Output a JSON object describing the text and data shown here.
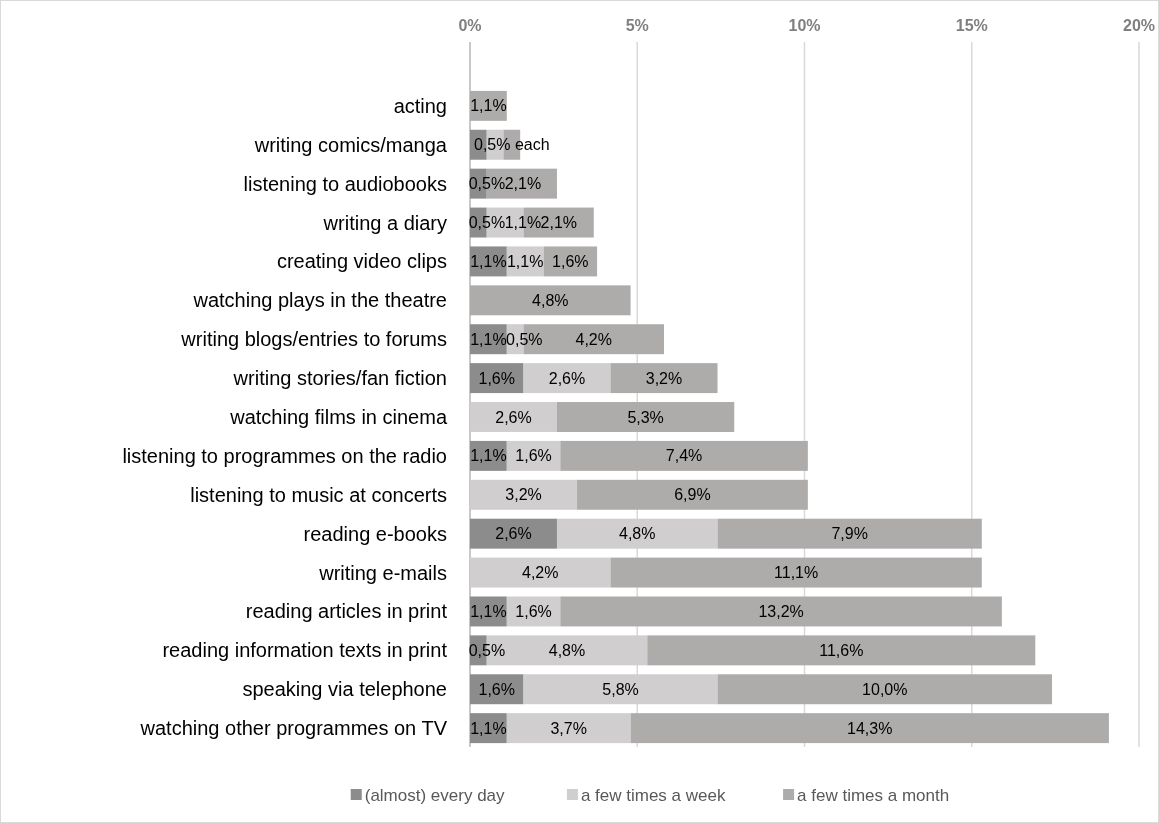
{
  "chart_data": {
    "type": "bar",
    "orientation": "horizontal",
    "stacked": true,
    "categories": [
      "acting",
      "writing comics/manga",
      "listening to audiobooks",
      "writing a diary",
      "creating video clips",
      "watching plays in the theatre",
      "writing blogs/entries to forums",
      "writing stories/fan fiction",
      "watching films in cinema",
      "listening to programmes on the radio",
      "listening to music at concerts",
      "reading e-books",
      "writing e-mails",
      "reading articles in print",
      "reading information texts in print",
      "speaking via telephone",
      "watching other programmes on TV"
    ],
    "series": [
      {
        "name": "(almost) every day",
        "color": "#8c8c8c",
        "values": [
          null,
          0.5,
          0.5,
          0.5,
          1.1,
          null,
          1.1,
          1.6,
          null,
          1.1,
          null,
          2.6,
          null,
          1.1,
          0.5,
          1.6,
          1.1
        ],
        "value_labels": [
          null,
          null,
          "0,5%",
          "0,5%",
          "1,1%",
          null,
          "1,1%",
          "1,6%",
          null,
          "1,1%",
          null,
          "2,6%",
          null,
          "1,1%",
          "0,5%",
          "1,6%",
          "1,1%"
        ]
      },
      {
        "name": "a few times a week",
        "color": "#d0cece",
        "values": [
          null,
          0.5,
          null,
          1.1,
          1.1,
          null,
          0.5,
          2.6,
          2.6,
          1.6,
          3.2,
          4.8,
          4.2,
          1.6,
          4.8,
          5.8,
          3.7
        ],
        "value_labels": [
          null,
          null,
          null,
          "1,1%",
          "1,1%",
          null,
          "0,5%",
          "2,6%",
          "2,6%",
          "1,6%",
          "3,2%",
          "4,8%",
          "4,2%",
          "1,6%",
          "4,8%",
          "5,8%",
          "3,7%"
        ]
      },
      {
        "name": "a few times a month",
        "color": "#aeabab",
        "values": [
          1.1,
          0.5,
          2.1,
          2.1,
          1.6,
          4.8,
          4.2,
          3.2,
          5.3,
          7.4,
          6.9,
          7.9,
          11.1,
          13.2,
          11.6,
          10.0,
          14.3
        ],
        "value_labels": [
          "1,1%",
          "0,5% each",
          "2,1%",
          "2,1%",
          "1,6%",
          "4,8%",
          "4,2%",
          "3,2%",
          "5,3%",
          "7,4%",
          "6,9%",
          "7,9%",
          "11,1%",
          "13,2%",
          "11,6%",
          "10,0%",
          "14,3%"
        ]
      }
    ],
    "xlim": [
      0,
      20
    ],
    "xticks": [
      {
        "value": 0,
        "label": "0%"
      },
      {
        "value": 5,
        "label": "5%"
      },
      {
        "value": 10,
        "label": "10%"
      },
      {
        "value": 15,
        "label": "15%"
      },
      {
        "value": 20,
        "label": "20%"
      }
    ],
    "grid": "x",
    "legend": "bottom"
  }
}
